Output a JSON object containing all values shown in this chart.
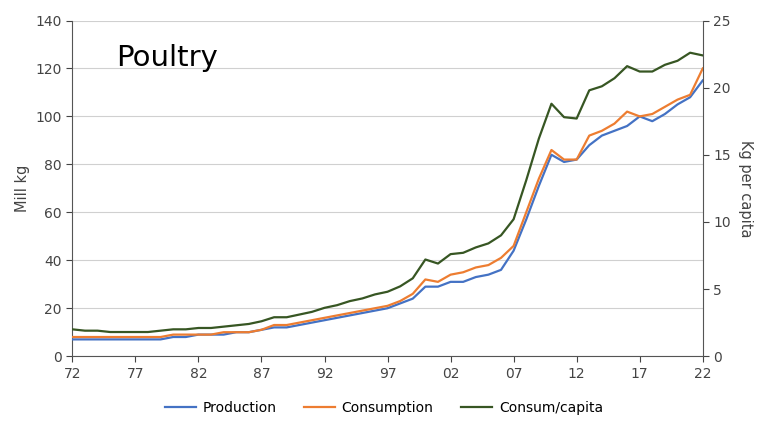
{
  "years": [
    1972,
    1973,
    1974,
    1975,
    1976,
    1977,
    1978,
    1979,
    1980,
    1981,
    1982,
    1983,
    1984,
    1985,
    1986,
    1987,
    1988,
    1989,
    1990,
    1991,
    1992,
    1993,
    1994,
    1995,
    1996,
    1997,
    1998,
    1999,
    2000,
    2001,
    2002,
    2003,
    2004,
    2005,
    2006,
    2007,
    2008,
    2009,
    2010,
    2011,
    2012,
    2013,
    2014,
    2015,
    2016,
    2017,
    2018,
    2019,
    2020,
    2021,
    2022
  ],
  "production": [
    7,
    7,
    7,
    7,
    7,
    7,
    7,
    7,
    8,
    8,
    9,
    9,
    9,
    10,
    10,
    11,
    12,
    12,
    13,
    14,
    15,
    16,
    17,
    18,
    19,
    20,
    22,
    24,
    29,
    29,
    31,
    31,
    33,
    34,
    36,
    44,
    57,
    71,
    84,
    81,
    82,
    88,
    92,
    94,
    96,
    100,
    98,
    101,
    105,
    108,
    115
  ],
  "consumption": [
    8,
    8,
    8,
    8,
    8,
    8,
    8,
    8,
    9,
    9,
    9,
    9,
    10,
    10,
    10,
    11,
    13,
    13,
    14,
    15,
    16,
    17,
    18,
    19,
    20,
    21,
    23,
    26,
    32,
    31,
    34,
    35,
    37,
    38,
    41,
    46,
    60,
    74,
    86,
    82,
    82,
    92,
    94,
    97,
    102,
    100,
    101,
    104,
    107,
    109,
    120
  ],
  "consum_capita": [
    2.0,
    1.9,
    1.9,
    1.8,
    1.8,
    1.8,
    1.8,
    1.9,
    2.0,
    2.0,
    2.1,
    2.1,
    2.2,
    2.3,
    2.4,
    2.6,
    2.9,
    2.9,
    3.1,
    3.3,
    3.6,
    3.8,
    4.1,
    4.3,
    4.6,
    4.8,
    5.2,
    5.8,
    7.2,
    6.9,
    7.6,
    7.7,
    8.1,
    8.4,
    9.0,
    10.2,
    13.1,
    16.2,
    18.8,
    17.8,
    17.7,
    19.8,
    20.1,
    20.7,
    21.6,
    21.2,
    21.2,
    21.7,
    22.0,
    22.6,
    22.4
  ],
  "production_color": "#4472c4",
  "consumption_color": "#ed7d31",
  "capita_color": "#375623",
  "ylabel_left": "Mill kg",
  "ylabel_right": "Kg per capita",
  "title": "Poultry",
  "ylim_left": [
    0,
    140
  ],
  "ylim_right": [
    0,
    25
  ],
  "yticks_left": [
    0,
    20,
    40,
    60,
    80,
    100,
    120,
    140
  ],
  "yticks_right": [
    0,
    5,
    10,
    15,
    20,
    25
  ],
  "xtick_positions": [
    1972,
    1977,
    1982,
    1987,
    1992,
    1997,
    2002,
    2007,
    2012,
    2017,
    2022
  ],
  "xtick_labels": [
    "72",
    "77",
    "82",
    "87",
    "92",
    "97",
    "02",
    "07",
    "12",
    "17",
    "22"
  ],
  "legend_labels": [
    "Production",
    "Consumption",
    "Consum/capita"
  ],
  "bg_color": "#ffffff",
  "grid_color": "#d0d0d0",
  "linewidth": 1.6
}
